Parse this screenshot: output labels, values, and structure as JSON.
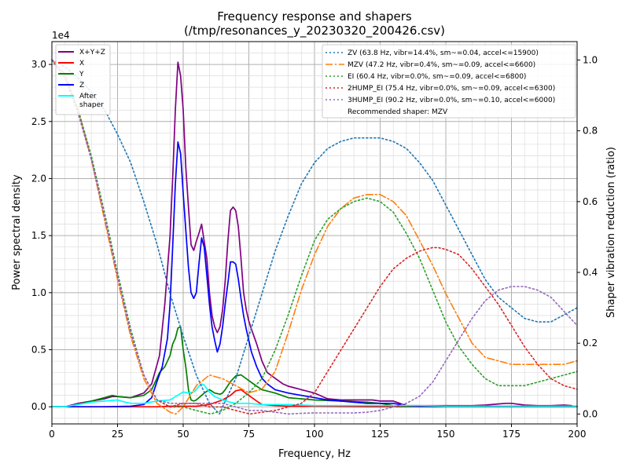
{
  "chart_data": {
    "type": "line",
    "title": "Frequency response and shapers",
    "subtitle": "(/tmp/resonances_y_20230320_200426.csv)",
    "xlabel": "Frequency, Hz",
    "ylabel": "Power spectral density",
    "y2label": "Shaper vibration reduction (ratio)",
    "y_multiplier": "1e4",
    "xlim": [
      0,
      200
    ],
    "ylim": [
      -0.15,
      3.2
    ],
    "y2lim": [
      -0.028,
      1.052
    ],
    "xticks": [
      0,
      25,
      50,
      75,
      100,
      125,
      150,
      175,
      200
    ],
    "yticks": [
      0.0,
      0.5,
      1.0,
      1.5,
      2.0,
      2.5,
      3.0
    ],
    "y2ticks": [
      0.0,
      0.2,
      0.4,
      0.6,
      0.8,
      1.0
    ],
    "grid": true,
    "legend_left": {
      "position": "top-left",
      "entries": [
        "X+Y+Z",
        "X",
        "Y",
        "Z",
        "After\nshaper"
      ]
    },
    "legend_right": {
      "position": "top-right",
      "entries": [
        "ZV (63.8 Hz, vibr=14.4%, sm~=0.04, accel<=15900)",
        "MZV (47.2 Hz, vibr=0.4%, sm~=0.09, accel<=6600)",
        "EI (60.4 Hz, vibr=0.0%, sm~=0.09, accel<=6800)",
        "2HUMP_EI (75.4 Hz, vibr=0.0%, sm~=0.09, accel<=6300)",
        "3HUMP_EI (90.2 Hz, vibr=0.0%, sm~=0.10, accel<=6000)"
      ],
      "note": "Recommended shaper: MZV"
    },
    "series": [
      {
        "name": "X+Y+Z",
        "color": "#800080",
        "axis": "left",
        "style": "solid",
        "x": [
          0,
          5,
          10,
          15,
          20,
          23,
          25,
          30,
          35,
          38,
          41,
          43,
          45,
          46,
          47,
          48,
          49,
          50,
          51,
          52,
          53,
          54,
          55,
          56,
          57,
          58,
          59,
          60,
          61,
          62,
          63,
          64,
          65,
          66,
          67,
          68,
          69,
          70,
          71,
          72,
          73,
          74,
          75,
          76,
          78,
          80,
          82,
          85,
          88,
          90,
          95,
          100,
          103,
          105,
          110,
          115,
          120,
          122,
          125,
          130,
          135,
          140,
          145,
          150,
          155,
          160,
          165,
          170,
          173,
          175,
          180,
          185,
          190,
          195,
          198
        ],
        "values": [
          0,
          0,
          0.03,
          0.05,
          0.07,
          0.09,
          0.09,
          0.08,
          0.12,
          0.2,
          0.45,
          0.9,
          1.5,
          2.0,
          2.6,
          3.02,
          2.9,
          2.6,
          2.1,
          1.75,
          1.42,
          1.37,
          1.45,
          1.52,
          1.6,
          1.45,
          1.3,
          1.0,
          0.8,
          0.7,
          0.65,
          0.7,
          0.85,
          1.1,
          1.45,
          1.72,
          1.75,
          1.72,
          1.58,
          1.3,
          1.0,
          0.85,
          0.75,
          0.68,
          0.55,
          0.4,
          0.3,
          0.25,
          0.2,
          0.18,
          0.15,
          0.12,
          0.09,
          0.07,
          0.06,
          0.06,
          0.06,
          0.06,
          0.05,
          0.05,
          0.01,
          0.01,
          0.01,
          0.01,
          0.01,
          0.01,
          0.015,
          0.025,
          0.03,
          0.03,
          0.015,
          0.01,
          0.01,
          0.015,
          0.01
        ]
      },
      {
        "name": "X",
        "color": "#ff0000",
        "axis": "left",
        "style": "solid",
        "x": [
          0,
          5,
          10,
          20,
          30,
          40,
          45,
          50,
          55,
          60,
          65,
          68,
          70,
          72,
          75,
          78,
          80,
          85,
          90,
          100,
          120,
          140,
          160,
          180,
          200
        ],
        "values": [
          0,
          0,
          0,
          0,
          0,
          0,
          0.005,
          0.005,
          0.005,
          0.02,
          0.06,
          0.1,
          0.14,
          0.15,
          0.1,
          0.05,
          0.02,
          0.01,
          0.005,
          0.005,
          0,
          0,
          0,
          0,
          0
        ]
      },
      {
        "name": "Y",
        "color": "#008000",
        "axis": "left",
        "style": "solid",
        "x": [
          0,
          5,
          10,
          15,
          20,
          23,
          25,
          30,
          35,
          38,
          41,
          43,
          45,
          46,
          47,
          48,
          49,
          50,
          51,
          52,
          53,
          54,
          55,
          56,
          57,
          58,
          60,
          62,
          64,
          65,
          66,
          68,
          70,
          72,
          75,
          78,
          80,
          85,
          90,
          100,
          110,
          120,
          125,
          130,
          135,
          140,
          150,
          160,
          170,
          180,
          190,
          200
        ],
        "values": [
          0,
          0,
          0.02,
          0.05,
          0.08,
          0.1,
          0.09,
          0.08,
          0.1,
          0.15,
          0.3,
          0.35,
          0.45,
          0.55,
          0.6,
          0.69,
          0.7,
          0.5,
          0.35,
          0.15,
          0.06,
          0.05,
          0.06,
          0.08,
          0.1,
          0.12,
          0.15,
          0.12,
          0.11,
          0.12,
          0.15,
          0.22,
          0.27,
          0.28,
          0.23,
          0.18,
          0.15,
          0.12,
          0.08,
          0.06,
          0.05,
          0.04,
          0.03,
          0.01,
          0.005,
          0.005,
          0.005,
          0.005,
          0.005,
          0.005,
          0.005,
          0.005
        ]
      },
      {
        "name": "Z",
        "color": "#0000ff",
        "axis": "left",
        "style": "solid",
        "x": [
          0,
          5,
          10,
          20,
          30,
          35,
          38,
          40,
          42,
          44,
          45,
          46,
          47,
          48,
          49,
          50,
          51,
          52,
          53,
          54,
          55,
          56,
          57,
          58,
          59,
          60,
          61,
          62,
          63,
          64,
          65,
          66,
          67,
          68,
          69,
          70,
          71,
          72,
          73,
          74,
          75,
          76,
          78,
          80,
          82,
          85,
          90,
          95,
          100,
          105,
          110,
          115,
          120,
          125,
          130,
          135,
          140,
          150,
          160,
          170,
          180,
          190,
          200
        ],
        "values": [
          0,
          0,
          0,
          0,
          0.005,
          0.02,
          0.08,
          0.22,
          0.35,
          0.6,
          0.9,
          1.4,
          1.95,
          2.32,
          2.22,
          1.87,
          1.55,
          1.22,
          1.0,
          0.95,
          1.0,
          1.25,
          1.48,
          1.4,
          1.15,
          0.9,
          0.7,
          0.58,
          0.48,
          0.55,
          0.7,
          0.9,
          1.08,
          1.27,
          1.27,
          1.25,
          1.12,
          0.95,
          0.8,
          0.68,
          0.58,
          0.48,
          0.35,
          0.25,
          0.2,
          0.15,
          0.12,
          0.1,
          0.08,
          0.06,
          0.05,
          0.04,
          0.03,
          0.03,
          0.03,
          0.01,
          0.005,
          0.005,
          0.005,
          0.005,
          0.005,
          0.005,
          0.005
        ]
      },
      {
        "name": "After shaper",
        "color": "#00ffff",
        "axis": "left",
        "style": "solid",
        "x": [
          0,
          5,
          10,
          15,
          20,
          25,
          28,
          30,
          35,
          40,
          45,
          50,
          52,
          54,
          55,
          56,
          57,
          58,
          60,
          62,
          65,
          68,
          70,
          75,
          80,
          85,
          90,
          100,
          110,
          120,
          130,
          140,
          150,
          160,
          170,
          180,
          190,
          200
        ],
        "values": [
          0,
          0,
          0.02,
          0.04,
          0.05,
          0.06,
          0.04,
          0.03,
          0.03,
          0.05,
          0.06,
          0.13,
          0.12,
          0.13,
          0.15,
          0.18,
          0.2,
          0.19,
          0.13,
          0.09,
          0.06,
          0.04,
          0.03,
          0.03,
          0.02,
          0.02,
          0.02,
          0.01,
          0.01,
          0.01,
          0.01,
          0.01,
          0.005,
          0.005,
          0.005,
          0.005,
          0.005,
          0.005
        ]
      },
      {
        "name": "ZV",
        "color": "#1f77b4",
        "axis": "right",
        "style": "dotted",
        "x": [
          0,
          5,
          10,
          15,
          20,
          25,
          30,
          35,
          40,
          45,
          50,
          55,
          60,
          63.8,
          65,
          70,
          75,
          80,
          85,
          90,
          95,
          100,
          105,
          110,
          115,
          120,
          125,
          130,
          135,
          140,
          145,
          150,
          155,
          160,
          165,
          170,
          175,
          180,
          185,
          190,
          195,
          200
        ],
        "values": [
          1.0,
          0.98,
          0.95,
          0.91,
          0.86,
          0.79,
          0.71,
          0.6,
          0.48,
          0.34,
          0.22,
          0.11,
          0.03,
          0.0,
          0.02,
          0.1,
          0.22,
          0.34,
          0.46,
          0.56,
          0.65,
          0.71,
          0.75,
          0.77,
          0.78,
          0.78,
          0.78,
          0.77,
          0.75,
          0.71,
          0.66,
          0.59,
          0.52,
          0.45,
          0.38,
          0.33,
          0.3,
          0.27,
          0.26,
          0.26,
          0.28,
          0.3
        ]
      },
      {
        "name": "MZV",
        "color": "#ff7f0e",
        "axis": "right",
        "style": "dashdot",
        "x": [
          0,
          5,
          10,
          15,
          20,
          25,
          30,
          35,
          40,
          45,
          47.2,
          50,
          55,
          60,
          65,
          70,
          75,
          80,
          85,
          90,
          95,
          100,
          105,
          110,
          115,
          120,
          125,
          130,
          135,
          140,
          145,
          150,
          155,
          160,
          165,
          170,
          175,
          180,
          185,
          190,
          195,
          200
        ],
        "values": [
          1.0,
          0.96,
          0.86,
          0.72,
          0.55,
          0.38,
          0.22,
          0.1,
          0.03,
          0.005,
          0.0,
          0.02,
          0.08,
          0.11,
          0.1,
          0.08,
          0.06,
          0.07,
          0.12,
          0.23,
          0.35,
          0.45,
          0.53,
          0.58,
          0.61,
          0.62,
          0.62,
          0.6,
          0.56,
          0.49,
          0.42,
          0.34,
          0.27,
          0.2,
          0.16,
          0.15,
          0.14,
          0.14,
          0.14,
          0.14,
          0.14,
          0.15
        ]
      },
      {
        "name": "EI",
        "color": "#2ca02c",
        "axis": "right",
        "style": "dotted",
        "x": [
          0,
          5,
          10,
          15,
          20,
          25,
          30,
          35,
          40,
          45,
          50,
          55,
          60.4,
          65,
          70,
          75,
          80,
          85,
          90,
          95,
          100,
          105,
          110,
          115,
          120,
          125,
          130,
          135,
          140,
          145,
          150,
          155,
          160,
          165,
          170,
          175,
          180,
          185,
          190,
          195,
          200
        ],
        "values": [
          1.0,
          0.95,
          0.86,
          0.73,
          0.57,
          0.4,
          0.24,
          0.11,
          0.04,
          0.02,
          0.02,
          0.01,
          0.0,
          0.01,
          0.03,
          0.06,
          0.1,
          0.18,
          0.28,
          0.39,
          0.49,
          0.55,
          0.58,
          0.6,
          0.61,
          0.6,
          0.57,
          0.51,
          0.44,
          0.35,
          0.26,
          0.19,
          0.14,
          0.1,
          0.08,
          0.08,
          0.08,
          0.09,
          0.1,
          0.11,
          0.12
        ]
      },
      {
        "name": "2HUMP_EI",
        "color": "#d62728",
        "axis": "right",
        "style": "dotted",
        "x": [
          0,
          5,
          10,
          15,
          20,
          25,
          30,
          35,
          40,
          45,
          50,
          55,
          60,
          65,
          70,
          75.4,
          80,
          85,
          90,
          95,
          100,
          105,
          110,
          115,
          120,
          125,
          130,
          135,
          140,
          145,
          147,
          150,
          155,
          160,
          165,
          170,
          175,
          180,
          185,
          190,
          195,
          200
        ],
        "values": [
          1.0,
          0.95,
          0.85,
          0.72,
          0.56,
          0.39,
          0.23,
          0.11,
          0.04,
          0.02,
          0.03,
          0.03,
          0.02,
          0.02,
          0.01,
          0.0,
          0.005,
          0.01,
          0.02,
          0.03,
          0.06,
          0.12,
          0.18,
          0.24,
          0.3,
          0.36,
          0.41,
          0.44,
          0.46,
          0.47,
          0.47,
          0.465,
          0.45,
          0.41,
          0.36,
          0.31,
          0.25,
          0.19,
          0.14,
          0.1,
          0.08,
          0.07
        ]
      },
      {
        "name": "3HUMP_EI",
        "color": "#9467bd",
        "axis": "right",
        "style": "dotted",
        "x": [
          0,
          5,
          10,
          15,
          20,
          25,
          30,
          35,
          40,
          45,
          50,
          55,
          60,
          65,
          70,
          75,
          80,
          85,
          90.2,
          95,
          100,
          105,
          110,
          115,
          120,
          125,
          130,
          135,
          140,
          145,
          150,
          155,
          160,
          165,
          170,
          175,
          180,
          185,
          190,
          195,
          200
        ],
        "values": [
          1.0,
          0.95,
          0.85,
          0.72,
          0.56,
          0.39,
          0.23,
          0.11,
          0.04,
          0.03,
          0.03,
          0.03,
          0.03,
          0.03,
          0.02,
          0.01,
          0.01,
          0.005,
          0.0,
          0.002,
          0.003,
          0.003,
          0.003,
          0.003,
          0.005,
          0.01,
          0.02,
          0.03,
          0.05,
          0.09,
          0.15,
          0.21,
          0.27,
          0.32,
          0.35,
          0.36,
          0.36,
          0.35,
          0.33,
          0.29,
          0.25
        ]
      }
    ]
  }
}
